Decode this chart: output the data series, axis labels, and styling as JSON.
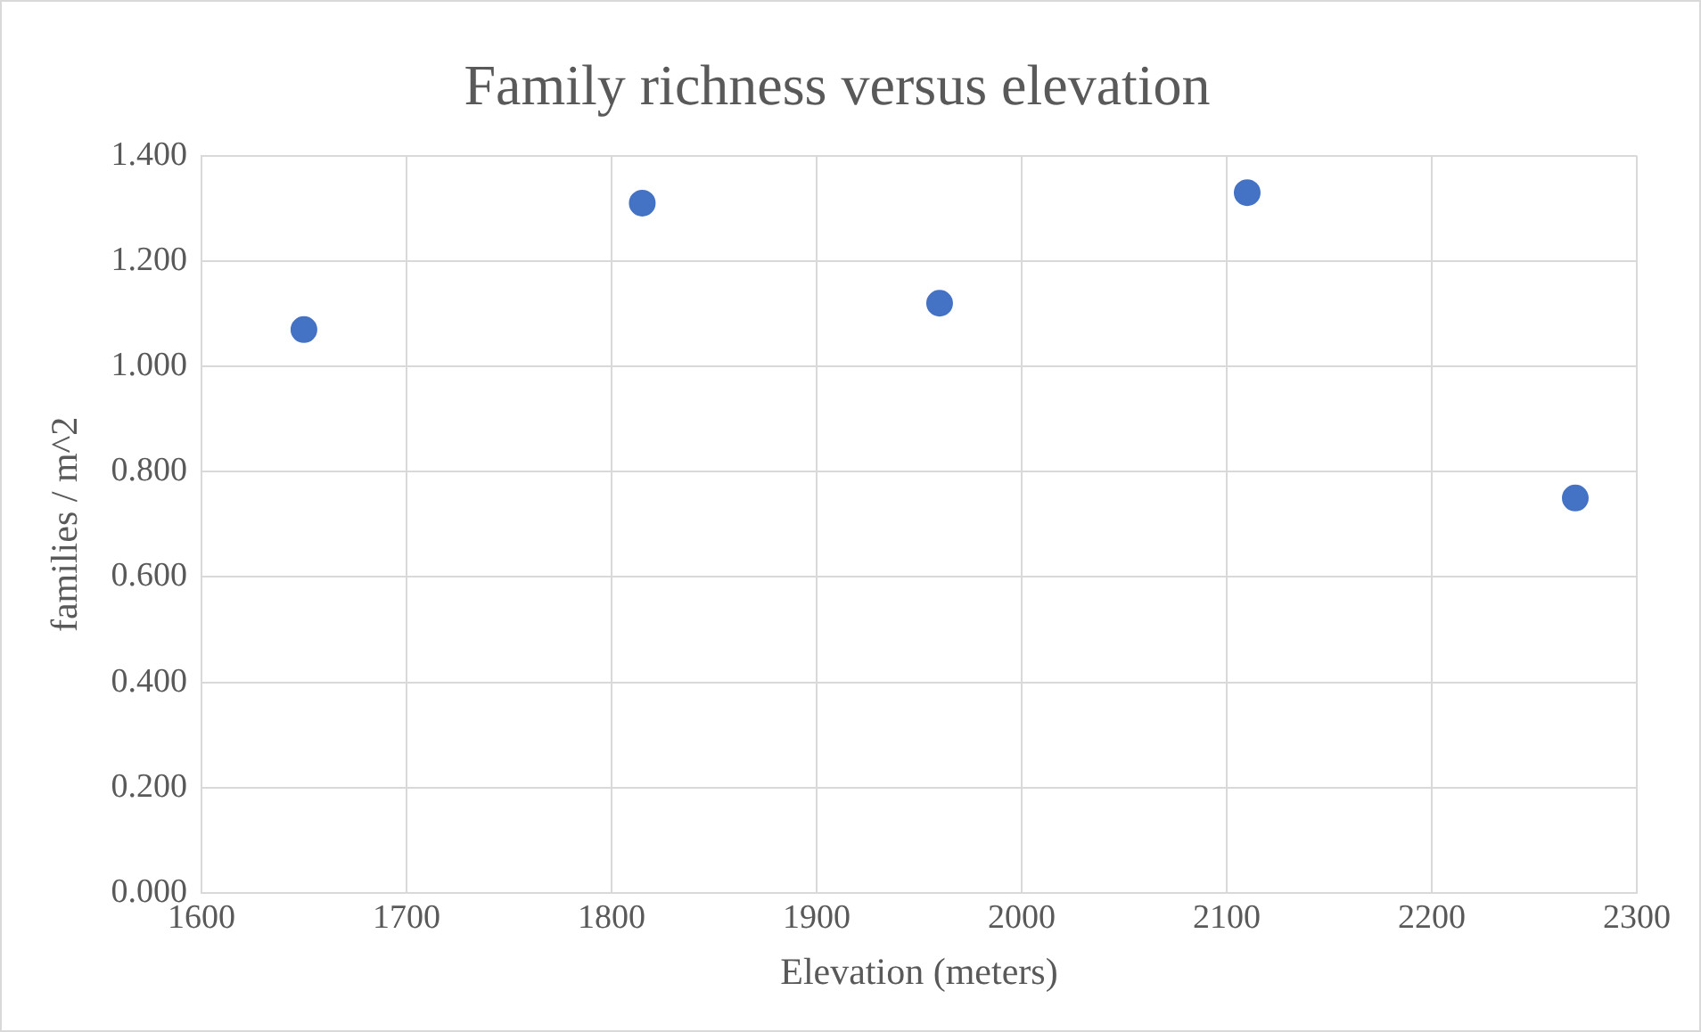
{
  "chart_data": {
    "type": "scatter",
    "title": "Family richness versus elevation",
    "xlabel": "Elevation (meters)",
    "ylabel": "families / m^2",
    "x": [
      1650,
      1815,
      1960,
      2110,
      2270
    ],
    "values": [
      1.07,
      1.31,
      1.12,
      1.33,
      0.75
    ],
    "color": "#4472c4",
    "marker": "circle",
    "grid": true,
    "xlim": [
      1600,
      2300
    ],
    "xticks": [
      1600,
      1700,
      1800,
      1900,
      2000,
      2100,
      2200,
      2300
    ],
    "ylim": [
      0,
      1.4
    ],
    "yticks": [
      {
        "value": 0,
        "label": "0.000"
      },
      {
        "value": 0.2,
        "label": "0.200"
      },
      {
        "value": 0.4,
        "label": "0.400"
      },
      {
        "value": 0.6,
        "label": "0.600"
      },
      {
        "value": 0.8,
        "label": "0.800"
      },
      {
        "value": 1,
        "label": "1.000"
      },
      {
        "value": 1.2,
        "label": "1.200"
      },
      {
        "value": 1.4,
        "label": "1.400"
      }
    ]
  }
}
